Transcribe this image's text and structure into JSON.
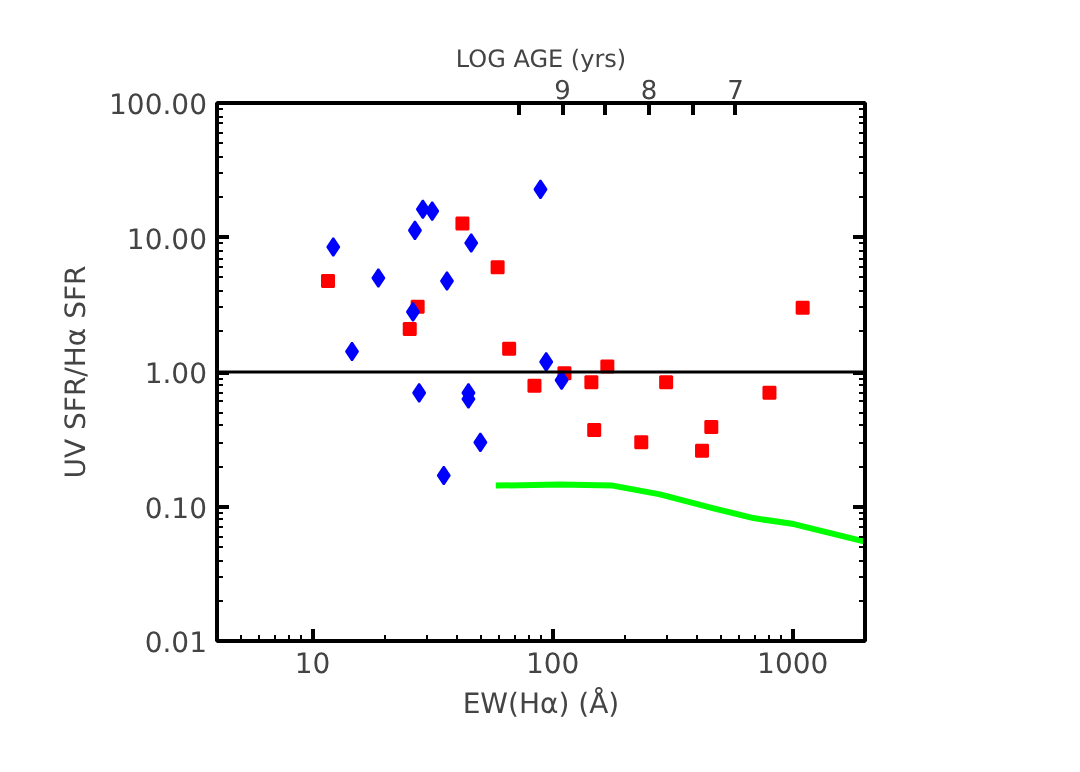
{
  "chart_data": {
    "type": "scatter",
    "xlabel": "EW(Hα) (Å)",
    "ylabel": "UV SFR/Hα SFR",
    "x2label": "LOG AGE (yrs)",
    "log": "xy",
    "grid": false,
    "xlim": [
      4,
      2000
    ],
    "xticks": [
      10,
      100,
      1000
    ],
    "x2lim": [
      13.0,
      5.5
    ],
    "x2ticks": [
      {
        "value": 9.5,
        "label": null
      },
      9,
      {
        "value": 8.5,
        "label": null
      },
      8,
      {
        "value": 7.5,
        "label": null
      },
      7
    ],
    "ylim": [
      0.01,
      100
    ],
    "yticks": [
      {
        "value": 0.01,
        "label": "0.01"
      },
      {
        "value": 0.1,
        "label": "0.10"
      },
      {
        "value": 1,
        "label": "1.00"
      },
      {
        "value": 10,
        "label": "10.00"
      },
      {
        "value": 100,
        "label": "100.00"
      }
    ],
    "ref_lines": [
      {
        "axis": "y",
        "value": 1,
        "color": "#000000"
      }
    ],
    "series": [
      {
        "type": "scatter",
        "marker": "diamond",
        "color": "#0000ff",
        "x": [
          12.2,
          18.8,
          14.6,
          28.8,
          31.5,
          26.7,
          45.8,
          36.3,
          26.2,
          27.8,
          44.6,
          44.6,
          50.0,
          35.2,
          89,
          94,
          109
        ],
        "values": [
          8.5,
          5.0,
          1.42,
          16.2,
          15.7,
          11.3,
          9.1,
          4.75,
          2.8,
          0.7,
          0.7,
          0.63,
          0.3,
          0.17,
          22.8,
          1.19,
          0.87
        ]
      },
      {
        "type": "scatter",
        "marker": "square",
        "color": "#ff0000",
        "x": [
          11.6,
          42.1,
          59,
          27.4,
          25.4,
          65.9,
          84,
          112,
          145,
          169,
          297,
          149,
          234,
          458,
          419,
          800,
          1100
        ],
        "values": [
          4.75,
          12.7,
          6.0,
          3.05,
          2.09,
          1.49,
          0.79,
          0.98,
          0.84,
          1.1,
          0.84,
          0.37,
          0.3,
          0.39,
          0.26,
          0.7,
          3.0
        ]
      },
      {
        "type": "line",
        "marker": "none",
        "color": "#00ff00",
        "x": [
          58,
          107,
          178,
          280,
          468,
          686,
          1010,
          1980
        ],
        "values": [
          0.143,
          0.146,
          0.143,
          0.123,
          0.097,
          0.082,
          0.074,
          0.055
        ]
      }
    ]
  }
}
